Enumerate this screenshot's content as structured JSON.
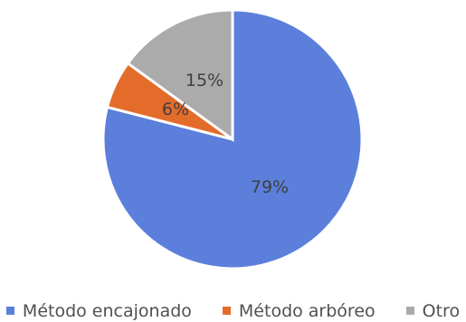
{
  "chart_data": {
    "type": "pie",
    "title": "",
    "slices": [
      {
        "label": "Método encajonado",
        "value": 79,
        "display": "79%",
        "color": "#5B7FDB"
      },
      {
        "label": "Método arbóreo",
        "value": 6,
        "display": "6%",
        "color": "#E46C2A"
      },
      {
        "label": "Otro",
        "value": 15,
        "display": "15%",
        "color": "#ABABAB"
      }
    ],
    "legend_position": "bottom"
  }
}
